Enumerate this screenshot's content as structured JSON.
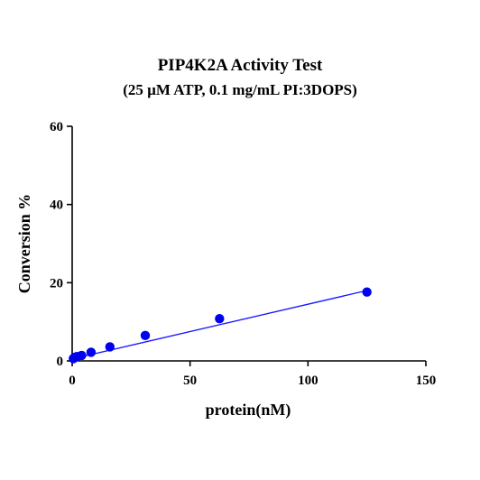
{
  "chart_data": {
    "type": "scatter",
    "title": "PIP4K2A Activity Test",
    "subtitle": "(25 µM ATP, 0.1 mg/mL PI:3DOPS)",
    "xlabel": "protein(nM)",
    "ylabel": "Conversion %",
    "xlim": [
      0,
      150
    ],
    "ylim": [
      0,
      60
    ],
    "xticks": [
      0,
      50,
      100,
      150
    ],
    "yticks": [
      0,
      20,
      40,
      60
    ],
    "grid": false,
    "colors": {
      "points": "#0000ee",
      "fit_line": "#1a1aff"
    },
    "series": [
      {
        "x": [
          0.5,
          1,
          2,
          4,
          8,
          16,
          31,
          62.5,
          125
        ],
        "y": [
          0.6,
          0.9,
          1.1,
          1.4,
          2.2,
          3.6,
          6.5,
          10.8,
          17.6
        ]
      }
    ],
    "fit_line": {
      "x": [
        0,
        125
      ],
      "y": [
        0.5,
        18.0
      ]
    }
  }
}
